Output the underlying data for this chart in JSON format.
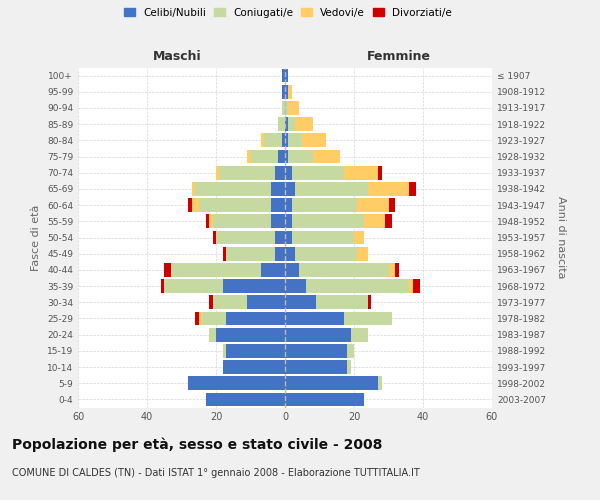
{
  "age_groups": [
    "0-4",
    "5-9",
    "10-14",
    "15-19",
    "20-24",
    "25-29",
    "30-34",
    "35-39",
    "40-44",
    "45-49",
    "50-54",
    "55-59",
    "60-64",
    "65-69",
    "70-74",
    "75-79",
    "80-84",
    "85-89",
    "90-94",
    "95-99",
    "100+"
  ],
  "birth_years": [
    "2003-2007",
    "1998-2002",
    "1993-1997",
    "1988-1992",
    "1983-1987",
    "1978-1982",
    "1973-1977",
    "1968-1972",
    "1963-1967",
    "1958-1962",
    "1953-1957",
    "1948-1952",
    "1943-1947",
    "1938-1942",
    "1933-1937",
    "1928-1932",
    "1923-1927",
    "1918-1922",
    "1913-1917",
    "1908-1912",
    "≤ 1907"
  ],
  "colors": {
    "celibe": "#4472C4",
    "coniugato": "#C5D9A0",
    "vedovo": "#FFCC66",
    "divorziato": "#CC0000"
  },
  "maschi": {
    "celibe": [
      23,
      28,
      18,
      17,
      20,
      17,
      11,
      18,
      7,
      3,
      3,
      4,
      4,
      4,
      3,
      2,
      1,
      0,
      0,
      1,
      1
    ],
    "coniugato": [
      0,
      0,
      0,
      1,
      2,
      7,
      10,
      17,
      26,
      14,
      17,
      17,
      21,
      22,
      16,
      8,
      5,
      2,
      1,
      0,
      0
    ],
    "vedovo": [
      0,
      0,
      0,
      0,
      0,
      1,
      0,
      0,
      0,
      0,
      0,
      1,
      2,
      1,
      1,
      1,
      1,
      0,
      0,
      0,
      0
    ],
    "divorziato": [
      0,
      0,
      0,
      0,
      0,
      1,
      1,
      1,
      2,
      1,
      1,
      1,
      1,
      0,
      0,
      0,
      0,
      0,
      0,
      0,
      0
    ]
  },
  "femmine": {
    "nubile": [
      23,
      27,
      18,
      18,
      19,
      17,
      9,
      6,
      4,
      3,
      2,
      2,
      2,
      3,
      2,
      1,
      1,
      1,
      0,
      1,
      1
    ],
    "coniugata": [
      0,
      1,
      1,
      2,
      5,
      14,
      15,
      30,
      26,
      18,
      18,
      21,
      19,
      21,
      15,
      7,
      4,
      2,
      1,
      0,
      0
    ],
    "vedova": [
      0,
      0,
      0,
      0,
      0,
      0,
      0,
      1,
      2,
      3,
      3,
      6,
      9,
      12,
      10,
      8,
      7,
      5,
      3,
      1,
      0
    ],
    "divorziata": [
      0,
      0,
      0,
      0,
      0,
      0,
      1,
      2,
      1,
      0,
      0,
      2,
      2,
      2,
      1,
      0,
      0,
      0,
      0,
      0,
      0
    ]
  },
  "xlim": 60,
  "title": "Popolazione per età, sesso e stato civile - 2008",
  "subtitle": "COMUNE DI CALDES (TN) - Dati ISTAT 1° gennaio 2008 - Elaborazione TUTTITALIA.IT",
  "ylabel_left": "Fasce di età",
  "ylabel_right": "Anni di nascita",
  "xlabel_maschi": "Maschi",
  "xlabel_femmine": "Femmine",
  "legend_labels": [
    "Celibi/Nubili",
    "Coniugati/e",
    "Vedovi/e",
    "Divorziati/e"
  ],
  "bg_color": "#f0f0f0",
  "plot_bg": "#ffffff",
  "grid_color": "#cccccc",
  "title_fontsize": 10,
  "subtitle_fontsize": 7
}
